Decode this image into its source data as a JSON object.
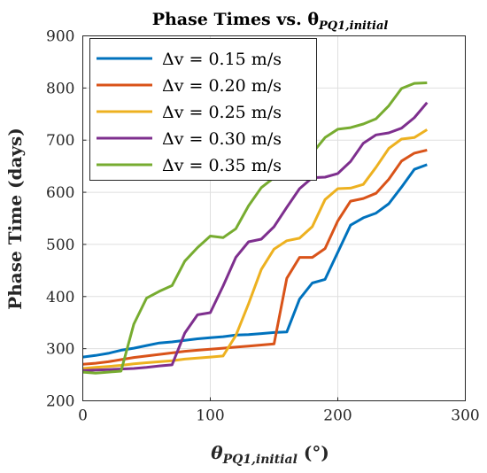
{
  "chart_data": {
    "type": "line",
    "title": "Phase Times vs. θ",
    "title_sub": "PQ1,initial",
    "xlabel": "θ",
    "xlabel_sub": "PQ1,initial",
    "xlabel_unit": " (°)",
    "ylabel": "Phase Time (days)",
    "xlim": [
      0,
      300
    ],
    "ylim": [
      200,
      900
    ],
    "x_ticks": [
      0,
      100,
      200,
      300
    ],
    "y_ticks": [
      200,
      300,
      400,
      500,
      600,
      700,
      800,
      900
    ],
    "grid": true,
    "legend_position": "top-left",
    "x": [
      0,
      10,
      20,
      30,
      40,
      50,
      60,
      70,
      80,
      90,
      100,
      110,
      120,
      130,
      140,
      150,
      160,
      170,
      180,
      190,
      200,
      210,
      220,
      230,
      240,
      250,
      260,
      270
    ],
    "series": [
      {
        "name": "Δv = 0.15 m/s",
        "color": "#0072BD",
        "values": [
          284,
          287,
          291,
          297,
          301,
          306,
          311,
          313,
          316,
          319,
          321,
          323,
          326,
          327,
          329,
          331,
          332,
          395,
          426,
          433,
          485,
          537,
          551,
          560,
          578,
          610,
          644,
          653
        ]
      },
      {
        "name": "Δv = 0.20 m/s",
        "color": "#D95319",
        "values": [
          270,
          272,
          275,
          279,
          283,
          286,
          289,
          292,
          295,
          297,
          299,
          301,
          303,
          305,
          307,
          309,
          435,
          475,
          475,
          492,
          545,
          583,
          588,
          598,
          625,
          660,
          675,
          681
        ]
      },
      {
        "name": "Δv = 0.25 m/s",
        "color": "#EDB120",
        "values": [
          262,
          264,
          266,
          268,
          271,
          273,
          275,
          277,
          280,
          282,
          284,
          286,
          325,
          386,
          452,
          491,
          507,
          512,
          534,
          586,
          607,
          608,
          615,
          648,
          684,
          702,
          705,
          720
        ]
      },
      {
        "name": "Δv = 0.30 m/s",
        "color": "#7E2F8E",
        "values": [
          258,
          259,
          260,
          261,
          262,
          264,
          267,
          269,
          330,
          365,
          369,
          420,
          475,
          505,
          510,
          534,
          571,
          607,
          628,
          629,
          636,
          659,
          694,
          710,
          714,
          723,
          743,
          772
        ]
      },
      {
        "name": "Δv = 0.35 m/s",
        "color": "#77AC30",
        "values": [
          255,
          253,
          255,
          257,
          347,
          397,
          410,
          421,
          468,
          494,
          516,
          513,
          530,
          574,
          609,
          628,
          650,
          662,
          675,
          705,
          721,
          724,
          731,
          741,
          766,
          799,
          809,
          810
        ]
      }
    ]
  }
}
